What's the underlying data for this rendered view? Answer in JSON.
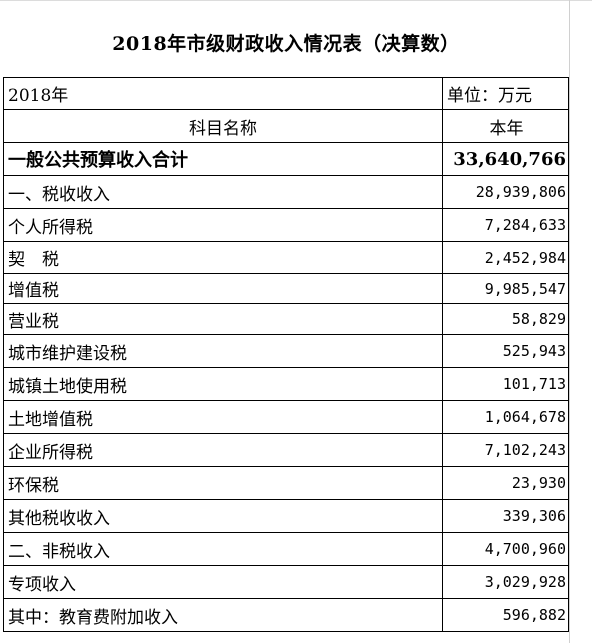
{
  "title": "2018年市级财政收入情况表（决算数）",
  "meta": {
    "year": "2018年",
    "unit": "单位：万元"
  },
  "header": {
    "subject": "科目名称",
    "value": "本年"
  },
  "total": {
    "label": "一般公共预算收入合计",
    "value": "33,640,766"
  },
  "rows": [
    {
      "label": "一、税收收入",
      "value": "28,939,806"
    },
    {
      "label": "个人所得税",
      "value": "7,284,633"
    },
    {
      "label": "契　税",
      "value": "2,452,984"
    },
    {
      "label": "增值税",
      "value": "9,985,547"
    },
    {
      "label": "营业税",
      "value": "58,829"
    },
    {
      "label": "城市维护建设税",
      "value": "525,943"
    },
    {
      "label": "城镇土地使用税",
      "value": "101,713"
    },
    {
      "label": "土地增值税",
      "value": "1,064,678"
    },
    {
      "label": "企业所得税",
      "value": "7,102,243"
    },
    {
      "label": "环保税",
      "value": "23,930"
    },
    {
      "label": "其他税收收入",
      "value": "339,306"
    },
    {
      "label": "二、非税收入",
      "value": "4,700,960"
    },
    {
      "label": "专项收入",
      "value": "3,029,928"
    },
    {
      "label": "其中：教育费附加收入",
      "value": "596,882"
    }
  ]
}
